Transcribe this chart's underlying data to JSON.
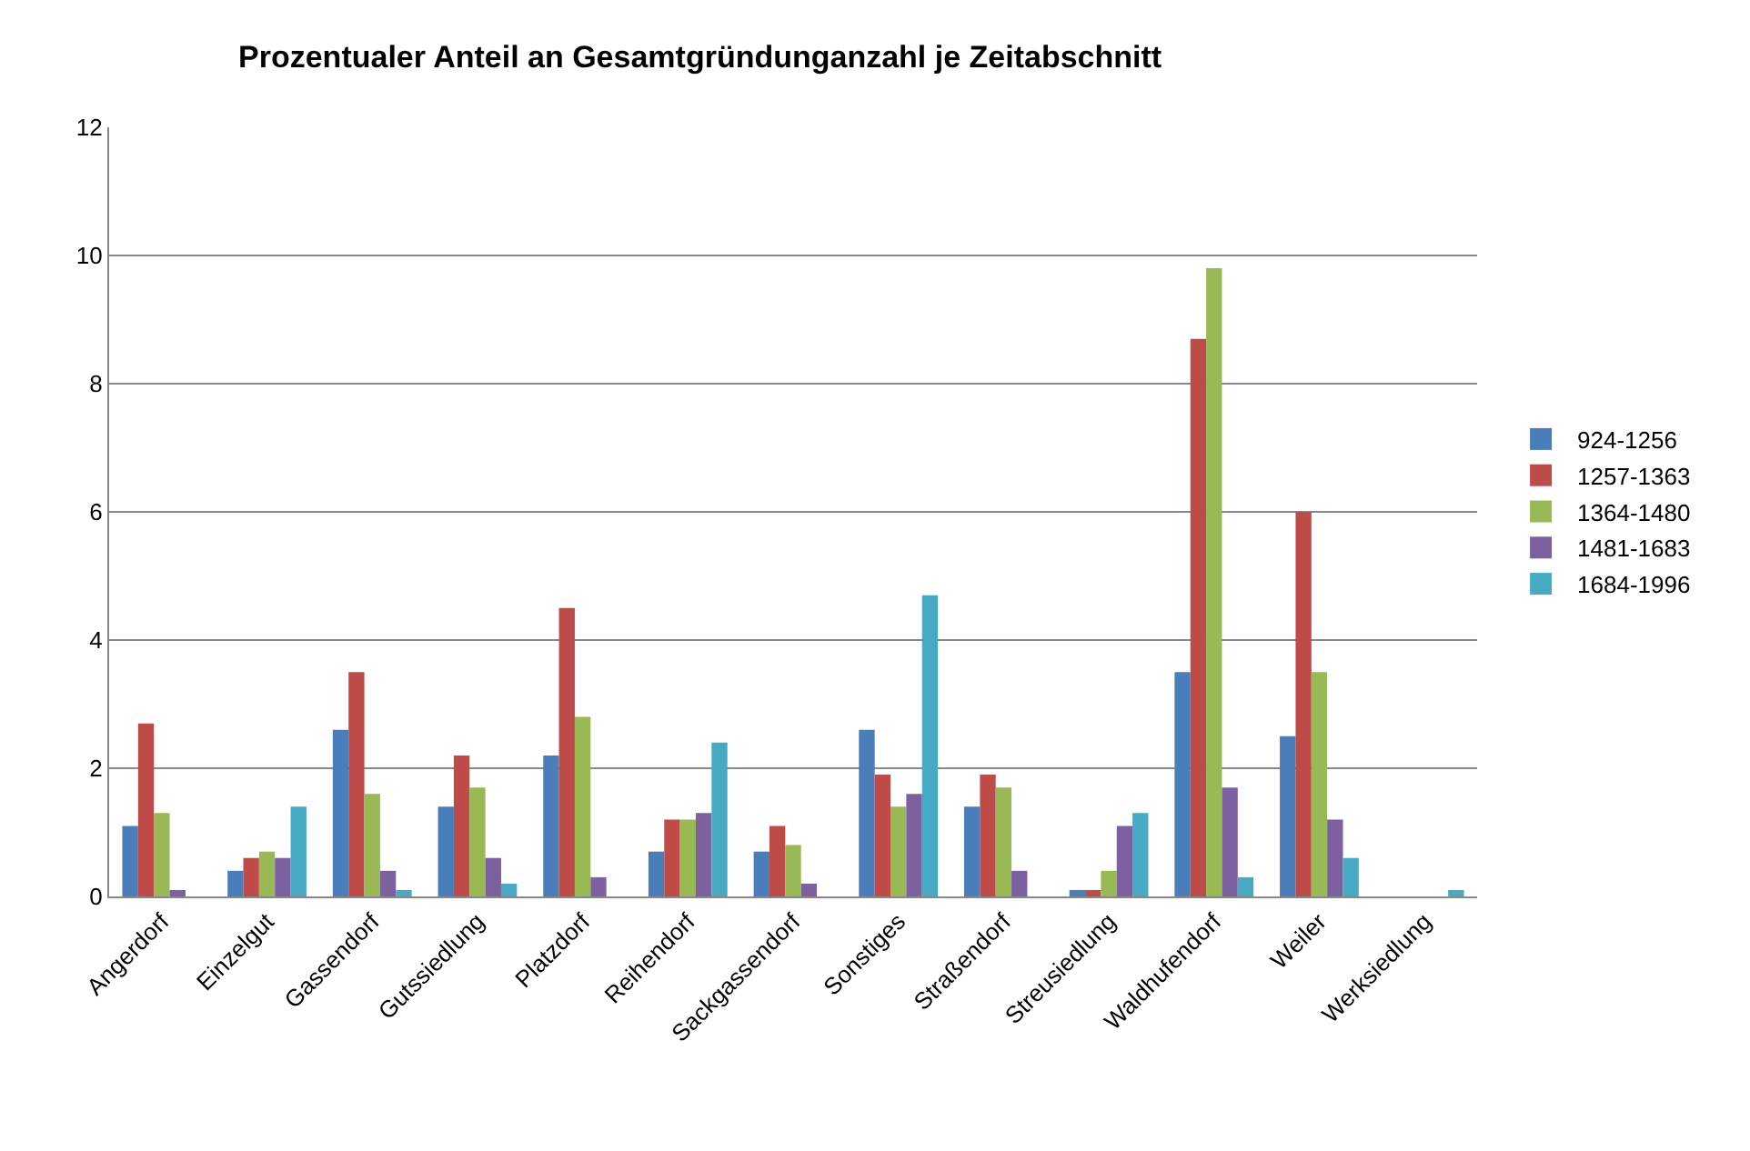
{
  "chart_data": {
    "type": "bar",
    "title": "Prozentualer Anteil an Gesamtgründunganzahl je Zeitabschnitt",
    "categories": [
      "Angerdorf",
      "Einzelgut",
      "Gassendorf",
      "Gutssiedlung",
      "Platzdorf",
      "Reihendorf",
      "Sackgassendorf",
      "Sonstiges",
      "Straßendorf",
      "Streusiedlung",
      "Waldhufendorf",
      "Weiler",
      "Werksiedlung"
    ],
    "series": [
      {
        "name": "924-1256",
        "color": "#4a7ebb",
        "values": [
          1.1,
          0.4,
          2.6,
          1.4,
          2.2,
          0.7,
          0.7,
          2.6,
          1.4,
          0.1,
          3.5,
          2.5,
          0
        ]
      },
      {
        "name": "1257-1363",
        "color": "#be4b48",
        "values": [
          2.7,
          0.6,
          3.5,
          2.2,
          4.5,
          1.2,
          1.1,
          1.9,
          1.9,
          0.1,
          8.7,
          6.0,
          0
        ]
      },
      {
        "name": "1364-1480",
        "color": "#98b954",
        "values": [
          1.3,
          0.7,
          1.6,
          1.7,
          2.8,
          1.2,
          0.8,
          1.4,
          1.7,
          0.4,
          9.8,
          3.5,
          0
        ]
      },
      {
        "name": "1481-1683",
        "color": "#7d60a0",
        "values": [
          0.1,
          0.6,
          0.4,
          0.6,
          0.3,
          1.3,
          0.2,
          1.6,
          0.4,
          1.1,
          1.7,
          1.2,
          0
        ]
      },
      {
        "name": "1684-1996",
        "color": "#46aac5",
        "values": [
          0,
          1.4,
          0.1,
          0.2,
          0,
          2.4,
          0,
          4.7,
          0,
          1.3,
          0.3,
          0.6,
          0.1
        ]
      }
    ],
    "ylim": [
      0,
      12
    ],
    "yticks": [
      0,
      2,
      4,
      6,
      8,
      10,
      12
    ],
    "grid": "y",
    "legend": "right"
  }
}
